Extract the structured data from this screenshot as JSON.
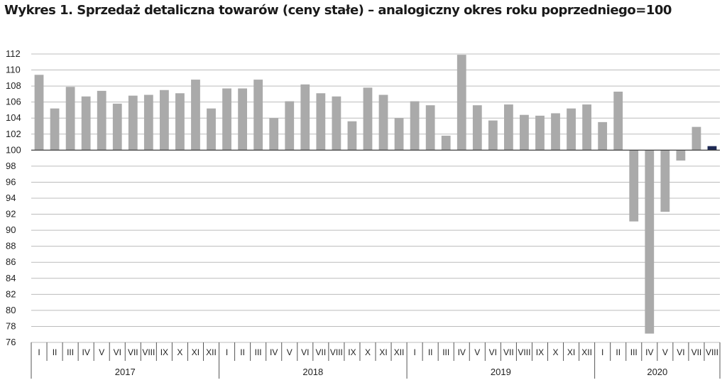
{
  "title": "Wykres 1. Sprzedaż detaliczna towarów (ceny stałe) – analogiczny okres roku poprzedniego=100",
  "chart_data": {
    "type": "bar",
    "title": "Wykres 1. Sprzedaż detaliczna towarów (ceny stałe) – analogiczny okres roku poprzedniego=100",
    "baseline": 100,
    "ylim": [
      76,
      112
    ],
    "yticks": [
      76,
      78,
      80,
      82,
      84,
      86,
      88,
      90,
      92,
      94,
      96,
      98,
      100,
      102,
      104,
      106,
      108,
      110,
      112
    ],
    "grid": true,
    "xlabel": "",
    "ylabel": "",
    "years": [
      "2017",
      "2018",
      "2019",
      "2020"
    ],
    "months": [
      "I",
      "II",
      "III",
      "IV",
      "V",
      "VI",
      "VII",
      "VIII",
      "IX",
      "X",
      "XI",
      "XII"
    ],
    "categories": [
      "I",
      "II",
      "III",
      "IV",
      "V",
      "VI",
      "VII",
      "VIII",
      "IX",
      "X",
      "XI",
      "XII",
      "I",
      "II",
      "III",
      "IV",
      "V",
      "VI",
      "VII",
      "VIII",
      "IX",
      "X",
      "XI",
      "XII",
      "I",
      "II",
      "III",
      "IV",
      "V",
      "VI",
      "VII",
      "VIII",
      "IX",
      "X",
      "XI",
      "XII",
      "I",
      "II",
      "III",
      "IV",
      "V",
      "VI",
      "VII",
      "VIII"
    ],
    "values": [
      109.4,
      105.2,
      107.9,
      106.7,
      107.4,
      105.8,
      106.8,
      106.9,
      107.5,
      107.1,
      108.8,
      105.2,
      107.7,
      107.7,
      108.8,
      104.0,
      106.1,
      108.2,
      107.1,
      106.7,
      103.6,
      107.8,
      106.9,
      104.0,
      106.1,
      105.6,
      101.8,
      111.9,
      105.6,
      103.7,
      105.7,
      104.4,
      104.3,
      104.6,
      105.2,
      105.7,
      103.5,
      107.3,
      91.1,
      77.1,
      92.3,
      98.7,
      102.9,
      100.5
    ],
    "colors": {
      "bar": "#aaaaaa",
      "last_bar": "#1f2a55",
      "grid": "#bcbcbc",
      "axis": "#555555"
    }
  }
}
